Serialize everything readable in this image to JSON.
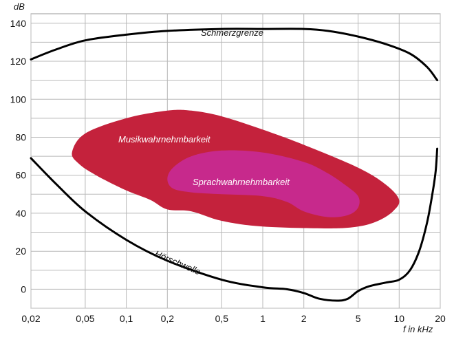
{
  "chart_data": {
    "type": "area",
    "xscale": "log",
    "x_unit_label": "f in kHz",
    "y_unit_label": "dB",
    "xlim": [
      0.02,
      20
    ],
    "ylim": [
      -10,
      145
    ],
    "grid": true,
    "x_ticks": [
      0.02,
      0.05,
      0.1,
      0.2,
      0.5,
      1,
      2,
      5,
      10,
      20
    ],
    "x_tick_labels": [
      "0,02",
      "0,05",
      "0,1",
      "0,2",
      "0,5",
      "1",
      "2",
      "5",
      "10",
      "20"
    ],
    "y_ticks": [
      0,
      20,
      40,
      60,
      80,
      100,
      120,
      140
    ],
    "y_tick_labels": [
      "0",
      "20",
      "40",
      "60",
      "80",
      "100",
      "120",
      "140"
    ],
    "curves": [
      {
        "name": "Schmerzgrenze",
        "points": [
          [
            0.02,
            121
          ],
          [
            0.03,
            126
          ],
          [
            0.05,
            131
          ],
          [
            0.1,
            134
          ],
          [
            0.2,
            136
          ],
          [
            0.5,
            137
          ],
          [
            1,
            137
          ],
          [
            2,
            137
          ],
          [
            3,
            136
          ],
          [
            5,
            133
          ],
          [
            8,
            129
          ],
          [
            12,
            124
          ],
          [
            16,
            117
          ],
          [
            19,
            110
          ]
        ]
      },
      {
        "name": "Hörschwelle",
        "points": [
          [
            0.02,
            69
          ],
          [
            0.03,
            56
          ],
          [
            0.05,
            41
          ],
          [
            0.1,
            26
          ],
          [
            0.2,
            15
          ],
          [
            0.5,
            5
          ],
          [
            1,
            1
          ],
          [
            1.5,
            0
          ],
          [
            2,
            -2
          ],
          [
            2.6,
            -5
          ],
          [
            3.5,
            -6
          ],
          [
            4.2,
            -5
          ],
          [
            5,
            -1
          ],
          [
            6,
            1.5
          ],
          [
            8,
            3.5
          ],
          [
            10,
            5
          ],
          [
            12,
            10
          ],
          [
            14,
            20
          ],
          [
            16,
            35
          ],
          [
            17.5,
            50
          ],
          [
            18.5,
            62
          ],
          [
            19,
            74
          ]
        ]
      }
    ],
    "regions": [
      {
        "name": "Musikwahrnehmbarkeit",
        "color": "#c4223c",
        "points": [
          [
            0.045,
            66
          ],
          [
            0.04,
            72
          ],
          [
            0.05,
            82
          ],
          [
            0.1,
            90
          ],
          [
            0.2,
            94
          ],
          [
            0.3,
            94
          ],
          [
            0.5,
            91
          ],
          [
            1,
            84
          ],
          [
            2,
            76
          ],
          [
            5,
            64
          ],
          [
            8,
            55
          ],
          [
            10,
            47
          ],
          [
            9,
            41
          ],
          [
            7,
            36
          ],
          [
            5,
            33
          ],
          [
            3,
            32
          ],
          [
            1,
            33
          ],
          [
            0.5,
            36
          ],
          [
            0.3,
            41
          ],
          [
            0.2,
            42
          ],
          [
            0.15,
            47
          ],
          [
            0.1,
            52
          ],
          [
            0.06,
            60
          ]
        ]
      },
      {
        "name": "Sprachwahrnehmbarkeit",
        "color": "#c7298c",
        "points": [
          [
            0.2,
            58
          ],
          [
            0.22,
            64
          ],
          [
            0.3,
            70
          ],
          [
            0.5,
            73
          ],
          [
            1,
            72
          ],
          [
            2,
            67
          ],
          [
            3,
            61
          ],
          [
            4,
            55
          ],
          [
            5,
            49
          ],
          [
            5,
            43
          ],
          [
            4.2,
            39
          ],
          [
            3,
            38
          ],
          [
            2,
            41
          ],
          [
            1.5,
            46
          ],
          [
            1,
            49
          ],
          [
            0.5,
            50
          ],
          [
            0.3,
            51
          ],
          [
            0.22,
            53
          ]
        ]
      }
    ]
  }
}
